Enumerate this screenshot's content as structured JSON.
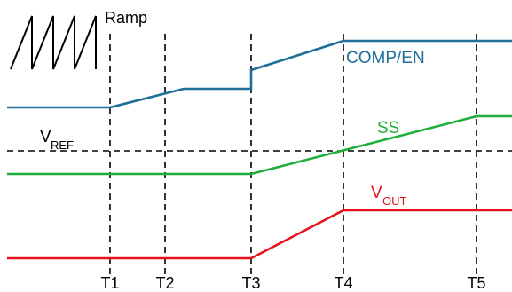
{
  "labels": {
    "ramp": "Ramp",
    "comp_en": "COMP/EN",
    "ss": "SS",
    "vref_main": "V",
    "vref_sub": "REF",
    "vout_main": "V",
    "vout_sub": "OUT"
  },
  "time_markers": [
    "T1",
    "T2",
    "T3",
    "T4",
    "T5"
  ],
  "colors": {
    "comp_en": "#1f6e9a",
    "ss": "#1fae3a",
    "vout": "#e8121a",
    "ramp": "#000000",
    "guide": "#000000",
    "vref_label": "#000000"
  }
}
